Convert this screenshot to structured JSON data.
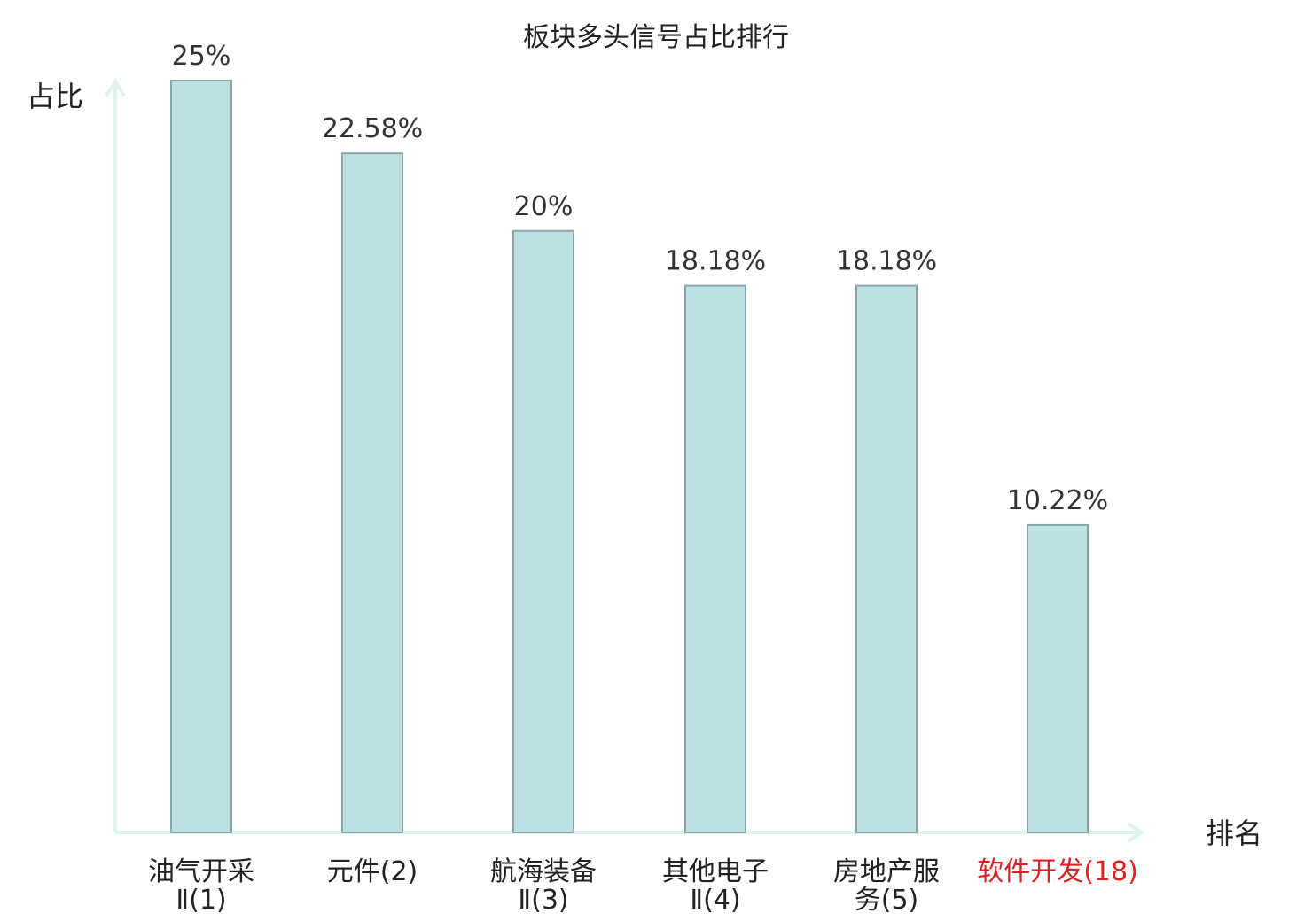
{
  "chart_data": {
    "type": "bar",
    "title": "板块多头信号占比排行",
    "xlabel": "排名",
    "ylabel": "占比",
    "categories": [
      [
        "油气开采",
        "Ⅱ(1)"
      ],
      [
        "元件(2)"
      ],
      [
        "航海装备",
        "Ⅱ(3)"
      ],
      [
        "其他电子",
        "Ⅱ(4)"
      ],
      [
        "房地产服",
        "务(5)"
      ],
      [
        "软件开发(18)"
      ]
    ],
    "values": [
      25,
      22.58,
      20,
      18.18,
      18.18,
      10.22
    ],
    "value_labels": [
      "25%",
      "22.58%",
      "20%",
      "18.18%",
      "18.18%",
      "10.22%"
    ],
    "highlight_index": 5,
    "ylim": [
      0,
      25
    ],
    "grid": false,
    "colors": {
      "bar_fill": "#bde0e3",
      "bar_stroke": "#8aa6aa",
      "axis": "#e2f2f1",
      "highlight_text": "#e02020"
    }
  }
}
